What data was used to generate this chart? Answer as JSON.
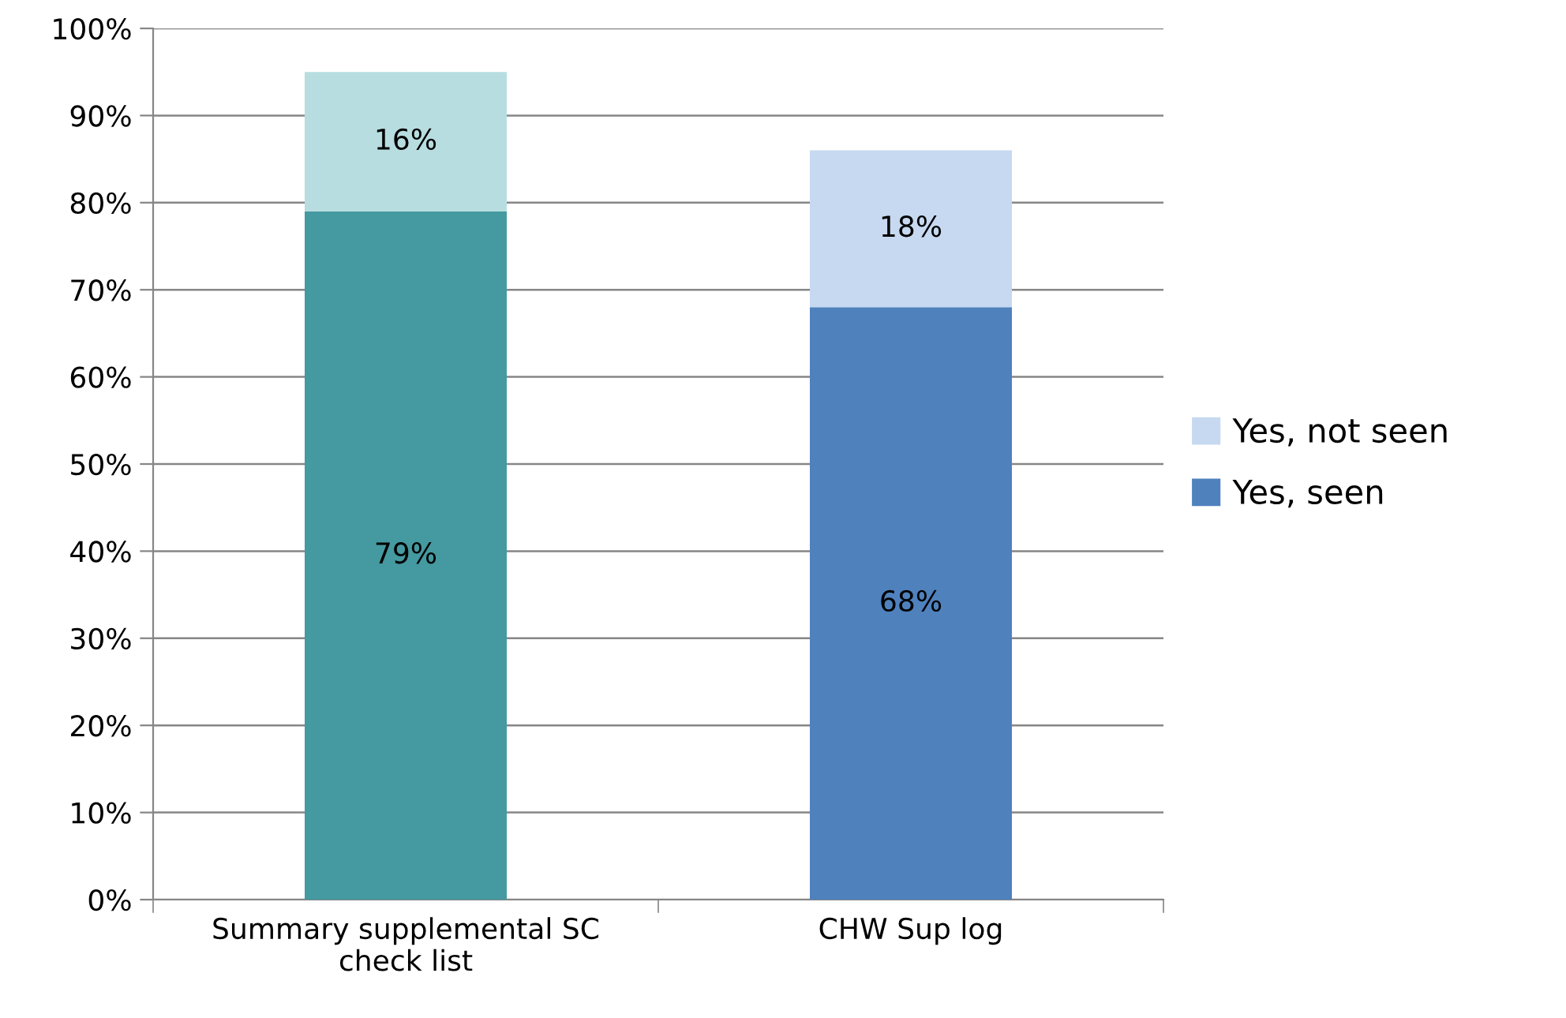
{
  "chart_data": {
    "type": "bar",
    "stacked": true,
    "categories": [
      "Summary supplemental SC\ncheck list",
      "CHW Sup log"
    ],
    "series": [
      {
        "name": "Yes, seen",
        "color": "#4f81bd",
        "colors": [
          "#4599a0",
          "#4f81bd"
        ],
        "values": [
          79,
          68
        ],
        "value_labels": [
          "79%",
          "68%"
        ]
      },
      {
        "name": "Yes, not seen",
        "color": "#c6d9f0",
        "colors": [
          "#b7dde0",
          "#c6d9f0"
        ],
        "values": [
          16,
          18
        ],
        "value_labels": [
          "16%",
          "18%"
        ]
      }
    ],
    "ylim": [
      0,
      100
    ],
    "yticks": [
      {
        "value": 0,
        "label": "0%"
      },
      {
        "value": 10,
        "label": "10%"
      },
      {
        "value": 20,
        "label": "20%"
      },
      {
        "value": 30,
        "label": "30%"
      },
      {
        "value": 40,
        "label": "40%"
      },
      {
        "value": 50,
        "label": "50%"
      },
      {
        "value": 60,
        "label": "60%"
      },
      {
        "value": 70,
        "label": "70%"
      },
      {
        "value": 80,
        "label": "80%"
      },
      {
        "value": 90,
        "label": "90%"
      },
      {
        "value": 100,
        "label": "100%"
      }
    ],
    "grid": "y",
    "legend": "right"
  }
}
